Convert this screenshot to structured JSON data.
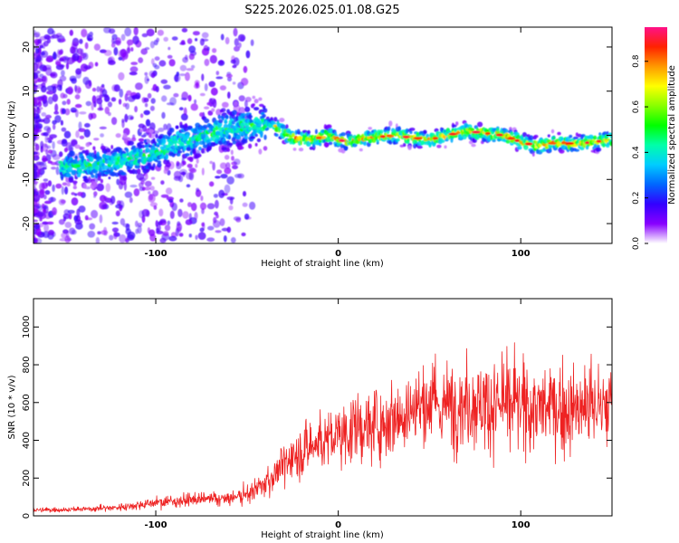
{
  "title": "S225.2026.025.01.08.G25",
  "colors": {
    "snr_line": "#ee2222",
    "frame": "#000000"
  },
  "chart_data": [
    {
      "type": "heatmap",
      "xlabel": "Height of straight line (km)",
      "ylabel": "Frequency (Hz)",
      "xlim": [
        -167,
        150
      ],
      "ylim": [
        -24.5,
        24.5
      ],
      "xticks": [
        -100,
        0,
        100
      ],
      "yticks": [
        -20,
        -10,
        0,
        10,
        20
      ],
      "colorbar": {
        "label": "Normalized spectral amplitude",
        "range": [
          0,
          0.95
        ],
        "ticks": [
          0.0,
          0.2,
          0.4,
          0.6,
          0.8
        ],
        "colormap": [
          "#ffffff",
          "#8800ff",
          "#3300ff",
          "#0066ff",
          "#00ccff",
          "#00ffaa",
          "#00ff00",
          "#88ff00",
          "#ffff00",
          "#ff9900",
          "#ff2200",
          "#ff1188"
        ]
      },
      "center_line": [
        [
          -140,
          -7
        ],
        [
          -120,
          -6
        ],
        [
          -100,
          -4
        ],
        [
          -90,
          -2
        ],
        [
          -80,
          -1
        ],
        [
          -70,
          0.5
        ],
        [
          -60,
          1.5
        ],
        [
          -50,
          2
        ],
        [
          -40,
          2.5
        ],
        [
          -35,
          2
        ],
        [
          -30,
          0.5
        ],
        [
          -25,
          -0.5
        ],
        [
          -20,
          -1
        ],
        [
          -15,
          -1
        ],
        [
          -10,
          -0.5
        ],
        [
          -5,
          0
        ],
        [
          0,
          -1
        ],
        [
          5,
          -1.5
        ],
        [
          10,
          -1
        ],
        [
          20,
          -0.5
        ],
        [
          30,
          0
        ],
        [
          40,
          -0.5
        ],
        [
          50,
          -1
        ],
        [
          60,
          0
        ],
        [
          70,
          1
        ],
        [
          80,
          0.5
        ],
        [
          90,
          0
        ],
        [
          100,
          -1.5
        ],
        [
          110,
          -2.5
        ],
        [
          120,
          -1.5
        ],
        [
          130,
          -2
        ],
        [
          140,
          -1.5
        ],
        [
          150,
          -1
        ]
      ]
    },
    {
      "type": "line",
      "xlabel": "Height of straight line (km)",
      "ylabel": "SNR (10 * v/v)",
      "xlim": [
        -167,
        150
      ],
      "ylim": [
        0,
        1150
      ],
      "xticks": [
        -100,
        0,
        100
      ],
      "yticks": [
        0,
        200,
        400,
        600,
        800,
        1000
      ],
      "envelope": [
        [
          -167,
          30
        ],
        [
          -140,
          35
        ],
        [
          -120,
          45
        ],
        [
          -100,
          70
        ],
        [
          -80,
          85
        ],
        [
          -60,
          90
        ],
        [
          -50,
          110
        ],
        [
          -40,
          170
        ],
        [
          -30,
          270
        ],
        [
          -20,
          340
        ],
        [
          -10,
          390
        ],
        [
          0,
          420
        ],
        [
          10,
          460
        ],
        [
          20,
          480
        ],
        [
          30,
          520
        ],
        [
          40,
          560
        ],
        [
          50,
          575
        ],
        [
          60,
          580
        ],
        [
          70,
          600
        ],
        [
          80,
          590
        ],
        [
          90,
          580
        ],
        [
          100,
          575
        ],
        [
          110,
          570
        ],
        [
          120,
          560
        ],
        [
          130,
          560
        ],
        [
          140,
          580
        ],
        [
          150,
          590
        ]
      ]
    }
  ]
}
